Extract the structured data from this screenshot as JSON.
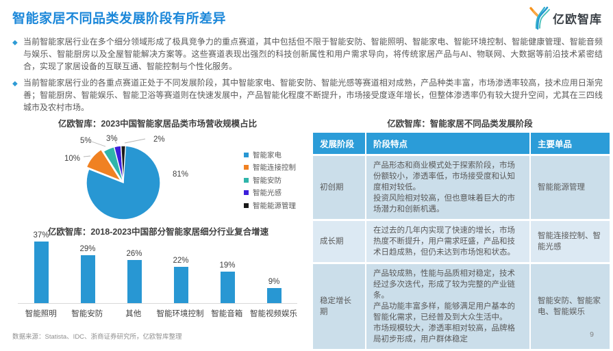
{
  "page": {
    "title": "智能家居不同品类发展阶段有所差异",
    "logo_text": "亿欧智库",
    "source": "数据来源：Statista、IDC、浙商证券研究所，亿欧智库整理",
    "page_number": "9"
  },
  "bullets": [
    "当前智能家居行业在多个细分领域形成了极具竞争力的重点赛道，其中包括但不限于智能安防、智能照明、智能家电、智能环境控制、智能健康管理、智能音频与娱乐、智能厨房以及全屋智能解决方案等。这些赛道表现出强烈的科技创新属性和用户需求导向，将传统家居产品与AI、物联网、大数据等前沿技术紧密结合，实现了家居设备的互联互通、智能控制与个性化服务。",
    "当前智能家居行业的各重点赛道正处于不同发展阶段，其中智能家电、智能安防、智能光感等赛道相对成熟，产品种类丰富，市场渗透率较高，技术应用日渐完善；智能厨房、智能娱乐、智能卫浴等赛道则在快速发展中，产品智能化程度不断提升，市场接受度逐年增长，但整体渗透率仍有较大提升空间，尤其在三四线城市及农村市场。"
  ],
  "chart_data": [
    {
      "type": "pie",
      "title": "亿欧智库：2023中国智能家居品类市场营收规模占比",
      "labels": [
        "智能家电",
        "智能连接控制",
        "智能安防",
        "智能光感",
        "智能能源管理"
      ],
      "values": [
        81,
        10,
        5,
        3,
        2
      ],
      "value_labels": [
        "81%",
        "10%",
        "5%",
        "3%",
        "2%"
      ],
      "colors": [
        "#2897d3",
        "#f08122",
        "#2fb5aa",
        "#3c1fdb",
        "#1a1a1a"
      ],
      "legend_position": "right",
      "start_angle_deg": 0,
      "direction": "clockwise"
    },
    {
      "type": "bar",
      "title": "亿欧智库：2018-2023中国部分智能家居细分行业复合增速",
      "categories": [
        "智能照明",
        "智能安防",
        "其他",
        "智能环境控制",
        "智能音箱",
        "智能视频娱乐"
      ],
      "values": [
        37,
        29,
        26,
        22,
        19,
        9
      ],
      "value_labels": [
        "37%",
        "29%",
        "26%",
        "22%",
        "19%",
        "9%"
      ],
      "bar_color": "#2897d3",
      "ylim": [
        0,
        40
      ],
      "grid": false,
      "data_labels": true,
      "legend_position": "none"
    }
  ],
  "table": {
    "title": "亿欧智库：智能家居不同品类发展阶段",
    "headers": [
      "发展阶段",
      "阶段特点",
      "主要单品"
    ],
    "rows": [
      {
        "stage": "初创期",
        "features": "产品形态和商业模式处于探索阶段，市场份额较小，渗透率低，市场接受度和认知度相对较低。\n投资风险相对较高，但也意味着巨大的市场潜力和创新机遇。",
        "products": "智能能源管理"
      },
      {
        "stage": "成长期",
        "features": "在过去的几年内实现了快速的增长，市场热度不断提升，用户需求旺盛，产品和技术日趋成熟，但仍未达到市场饱和状态。",
        "products": "智能连接控制、智能光感"
      },
      {
        "stage": "稳定增长期",
        "features": "产品较成熟，性能与品质相对稳定，技术经过多次迭代，形成了较为完整的产业链条。\n产品功能丰富多样，能够满足用户基本的智能化需求，已经普及到大众生活中。\n市场规模较大，渗透率相对较高，品牌格局初步形成，用户群体稳定",
        "products": "智能安防、智能家电、智能娱乐"
      }
    ]
  },
  "colors": {
    "title_blue": "#1b87d9",
    "accent_blue": "#2897d3",
    "table_header_blue": "#2b9cd8",
    "table_row_odd": "#cbdeea",
    "table_row_even": "#dce9f3",
    "body_text": "#595959",
    "logo_orange": "#f7941d",
    "logo_teal": "#2fb5c4"
  }
}
